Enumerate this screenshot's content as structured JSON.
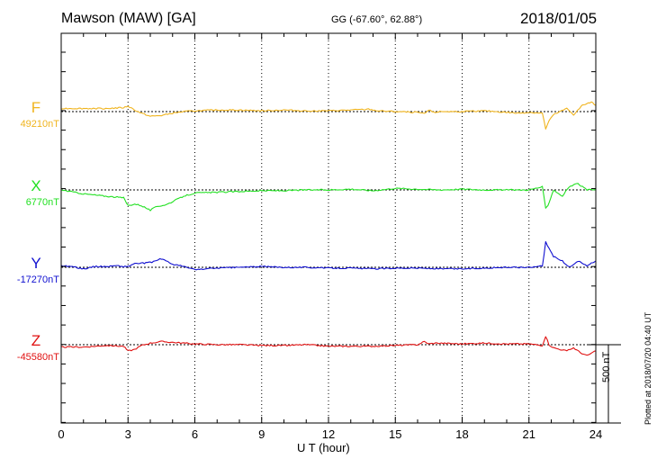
{
  "header": {
    "station": "Mawson (MAW)  [GA]",
    "coords": "GG (-67.60°,  62.88°)",
    "date": "2018/01/05"
  },
  "footer": {
    "plotted": "Plotted at 2018/07/20 04:40 UT"
  },
  "colors": {
    "F": "#f0b41e",
    "X": "#22e022",
    "Y": "#1010d0",
    "Z": "#e01010"
  },
  "chart_data": {
    "type": "line",
    "xlabel": "U T (hour)",
    "xlim": [
      0,
      24
    ],
    "xticks": [
      "0",
      "3",
      "6",
      "9",
      "12",
      "15",
      "18",
      "21",
      "24"
    ],
    "scale_bar": "500 nT",
    "series": [
      {
        "name": "F",
        "baseline": "49210nT",
        "x": [
          0,
          1,
          2,
          2.8,
          3.0,
          3.3,
          3.6,
          4.0,
          4.5,
          5.0,
          5.5,
          6.0,
          7,
          8,
          9,
          10,
          11,
          12,
          13,
          13.8,
          14.2,
          15,
          16,
          16.3,
          16.5,
          16.8,
          17,
          18,
          19,
          20,
          20.5,
          21,
          21.6,
          21.75,
          21.9,
          22.1,
          22.4,
          22.7,
          23.0,
          23.4,
          23.8,
          24
        ],
        "values": [
          20,
          20,
          20,
          25,
          35,
          10,
          -10,
          -30,
          -25,
          -10,
          0,
          5,
          10,
          10,
          5,
          10,
          5,
          5,
          10,
          15,
          5,
          0,
          -5,
          -15,
          10,
          -5,
          0,
          0,
          5,
          -5,
          -10,
          -5,
          -10,
          -110,
          -60,
          -20,
          0,
          20,
          -20,
          40,
          60,
          40
        ]
      },
      {
        "name": "X",
        "baseline": "6770nT",
        "x": [
          0,
          1,
          2,
          2.8,
          3.0,
          3.3,
          3.6,
          4.0,
          4.3,
          4.7,
          5.0,
          5.5,
          6.0,
          7,
          8,
          9,
          10,
          11,
          12,
          13,
          14,
          15,
          16,
          17,
          18,
          19,
          20,
          21,
          21.6,
          21.75,
          21.85,
          22.1,
          22.5,
          22.8,
          23.2,
          23.6,
          24
        ],
        "values": [
          0,
          -25,
          -40,
          -50,
          -100,
          -90,
          -100,
          -130,
          -105,
          -95,
          -75,
          -40,
          -20,
          -15,
          -10,
          -5,
          -5,
          0,
          0,
          5,
          -5,
          10,
          5,
          0,
          5,
          0,
          0,
          0,
          20,
          -120,
          -100,
          0,
          -40,
          20,
          40,
          0,
          0
        ]
      },
      {
        "name": "Y",
        "baseline": "-17270nT",
        "x": [
          0,
          0.5,
          1,
          1.5,
          2,
          2.5,
          2.8,
          3.0,
          3.3,
          3.6,
          4.0,
          4.5,
          5.0,
          5.5,
          6.0,
          7,
          8,
          9,
          10,
          11,
          12,
          13,
          14,
          15,
          16,
          17,
          18,
          19,
          20,
          21,
          21.6,
          21.75,
          21.9,
          22.1,
          22.5,
          22.8,
          23.2,
          23.6,
          24
        ],
        "values": [
          10,
          5,
          -10,
          5,
          5,
          10,
          5,
          5,
          25,
          25,
          30,
          55,
          20,
          5,
          -15,
          -5,
          0,
          5,
          0,
          0,
          -5,
          -5,
          -10,
          -5,
          -5,
          -10,
          -10,
          -5,
          0,
          0,
          10,
          160,
          120,
          70,
          40,
          0,
          40,
          10,
          40
        ]
      },
      {
        "name": "Z",
        "baseline": "-45580nT",
        "x": [
          0,
          1,
          2,
          2.8,
          3.0,
          3.3,
          3.6,
          4.0,
          4.5,
          5.0,
          5.5,
          6.0,
          7,
          8,
          9,
          10,
          11,
          12,
          13,
          14,
          15,
          16,
          16.3,
          16.5,
          16.8,
          17,
          18,
          19,
          20,
          21,
          21.6,
          21.75,
          21.9,
          22.1,
          22.4,
          22.7,
          23.0,
          23.3,
          23.6,
          24
        ],
        "values": [
          -15,
          -15,
          -5,
          -10,
          -40,
          -30,
          -5,
          10,
          20,
          15,
          10,
          5,
          0,
          0,
          -5,
          -5,
          0,
          -10,
          -10,
          -10,
          -5,
          0,
          20,
          5,
          10,
          10,
          5,
          10,
          5,
          5,
          -5,
          55,
          0,
          -20,
          -30,
          -40,
          -20,
          -50,
          -70,
          -40
        ]
      }
    ]
  }
}
